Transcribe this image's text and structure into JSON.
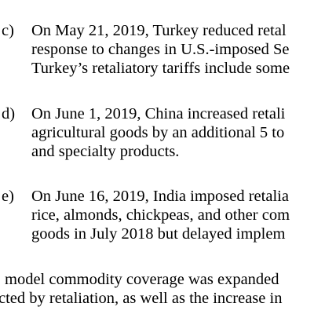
{
  "items": [
    {
      "marker": "c)",
      "lines": [
        "On May 21, 2019, Turkey reduced retal",
        "response to changes in U.S.-imposed Se",
        "Turkey’s retaliatory tariffs include some"
      ]
    },
    {
      "marker": "d)",
      "lines": [
        "On June 1, 2019, China increased retali",
        "agricultural goods by an additional 5 to",
        "and specialty products."
      ]
    },
    {
      "marker": "e)",
      "lines": [
        "On June 16, 2019, India imposed retalia",
        "rice, almonds, chickpeas, and other com",
        "goods in July 2018 but delayed implem"
      ]
    }
  ],
  "paragraph": {
    "lines": [
      "model commodity coverage was expanded",
      "cted by retaliation, as well as the increase in"
    ]
  }
}
